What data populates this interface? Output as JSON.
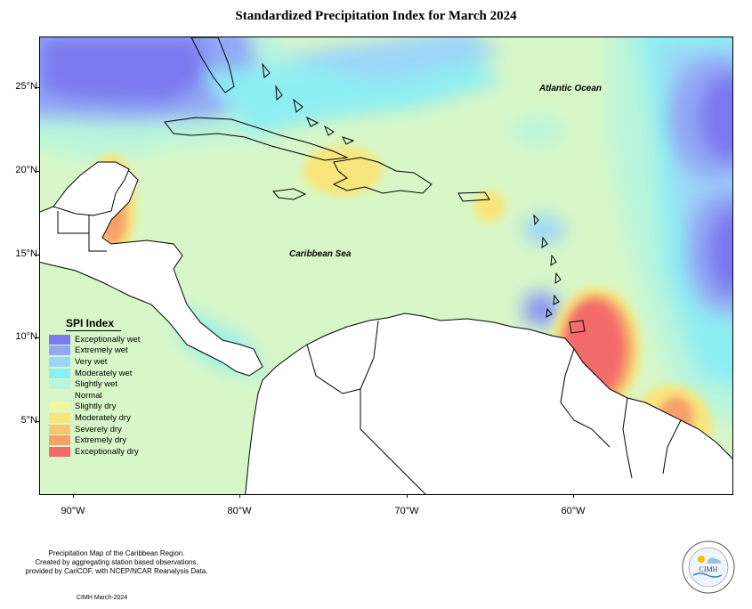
{
  "title": "Standardized Precipitation Index for March 2024",
  "axes": {
    "lat_labels": [
      "25°N",
      "20°N",
      "15°N",
      "10°N",
      "5°N"
    ],
    "lon_labels": [
      "90°W",
      "80°W",
      "70°W",
      "60°W"
    ]
  },
  "places": {
    "atlantic": "Atlantic Ocean",
    "caribbean": "Caribbean Sea"
  },
  "legend": {
    "title": "SPI Index",
    "items": [
      {
        "label": "Exceptionally wet",
        "color": "#7b78f0"
      },
      {
        "label": "Extremely wet",
        "color": "#93a8f5"
      },
      {
        "label": "Very wet",
        "color": "#9dd5f8"
      },
      {
        "label": "Moderately wet",
        "color": "#8deef2"
      },
      {
        "label": "Slightly wet",
        "color": "#b9f5dc"
      },
      {
        "label": "Normal",
        "color": "#d8f7c8"
      },
      {
        "label": "Slightly dry",
        "color": "#eef8a4"
      },
      {
        "label": "Moderately dry",
        "color": "#f8e67c"
      },
      {
        "label": "Severely dry",
        "color": "#f8c66e"
      },
      {
        "label": "Extremely dry",
        "color": "#f7a06c"
      },
      {
        "label": "Exceptionally dry",
        "color": "#f36b6b"
      }
    ]
  },
  "footnote": {
    "line1": "Precipitation Map of the Caribbean Region.",
    "line2": "Created by aggregating station based observations,",
    "line3": "provided by CariCOF, with NCEP/NCAR Reanalysis Data."
  },
  "credit": "CIMH March-2024",
  "logo": {
    "text": "CIMH"
  }
}
